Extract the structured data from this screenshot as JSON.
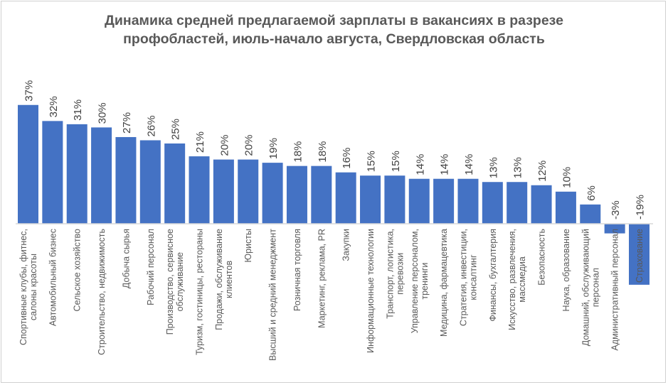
{
  "chart_data": {
    "type": "bar",
    "title_lines": [
      "Динамика средней предлагаемой зарплаты в вакансиях в разрезе",
      "профобластей, июль-начало августа, Свердловская область"
    ],
    "xlabel": "",
    "ylabel": "",
    "ylim": [
      -19,
      37
    ],
    "grid": false,
    "legend": "none",
    "bar_color": "#4472C4",
    "categories": [
      [
        "Спортивные клубы, фитнес,",
        "салоны красоты"
      ],
      [
        "Автомобильный бизнес"
      ],
      [
        "Сельское хозяйство"
      ],
      [
        "Строительство, недвижимость"
      ],
      [
        "Добыча сырья"
      ],
      [
        "Рабочий персонал"
      ],
      [
        "Производство, сервисное",
        "обслуживание"
      ],
      [
        "Туризм, гостиницы, рестораны"
      ],
      [
        "Продажи, обслуживание",
        "клиентов"
      ],
      [
        "Юристы"
      ],
      [
        "Высший и средний менеджмент"
      ],
      [
        "Розничная торговля"
      ],
      [
        "Маркетинг, реклама, PR"
      ],
      [
        "Закупки"
      ],
      [
        "Информационные технологии"
      ],
      [
        "Транспорт, логистика,",
        "перевозки"
      ],
      [
        "Управление персоналом,",
        "тренинги"
      ],
      [
        "Медицина, фармацевтика"
      ],
      [
        "Стратегия, инвестиции,",
        "консалтинг"
      ],
      [
        "Финансы, бухгалтерия"
      ],
      [
        "Искусство, развлечения,",
        "массмедиа"
      ],
      [
        "Безопасность"
      ],
      [
        "Наука, образование"
      ],
      [
        "Домашний, обслуживающий",
        "персонал"
      ],
      [
        "Административный персонал"
      ],
      [
        "Страхование"
      ]
    ],
    "values": [
      37,
      32,
      31,
      30,
      27,
      26,
      25,
      21,
      20,
      20,
      19,
      18,
      18,
      16,
      15,
      15,
      14,
      14,
      14,
      13,
      13,
      12,
      10,
      6,
      -3,
      -19
    ],
    "data_labels": [
      "37%",
      "32%",
      "31%",
      "30%",
      "27%",
      "26%",
      "25%",
      "21%",
      "20%",
      "20%",
      "19%",
      "18%",
      "18%",
      "16%",
      "15%",
      "15%",
      "14%",
      "14%",
      "14%",
      "13%",
      "13%",
      "12%",
      "10%",
      "6%",
      "-3%",
      "-19%"
    ]
  }
}
